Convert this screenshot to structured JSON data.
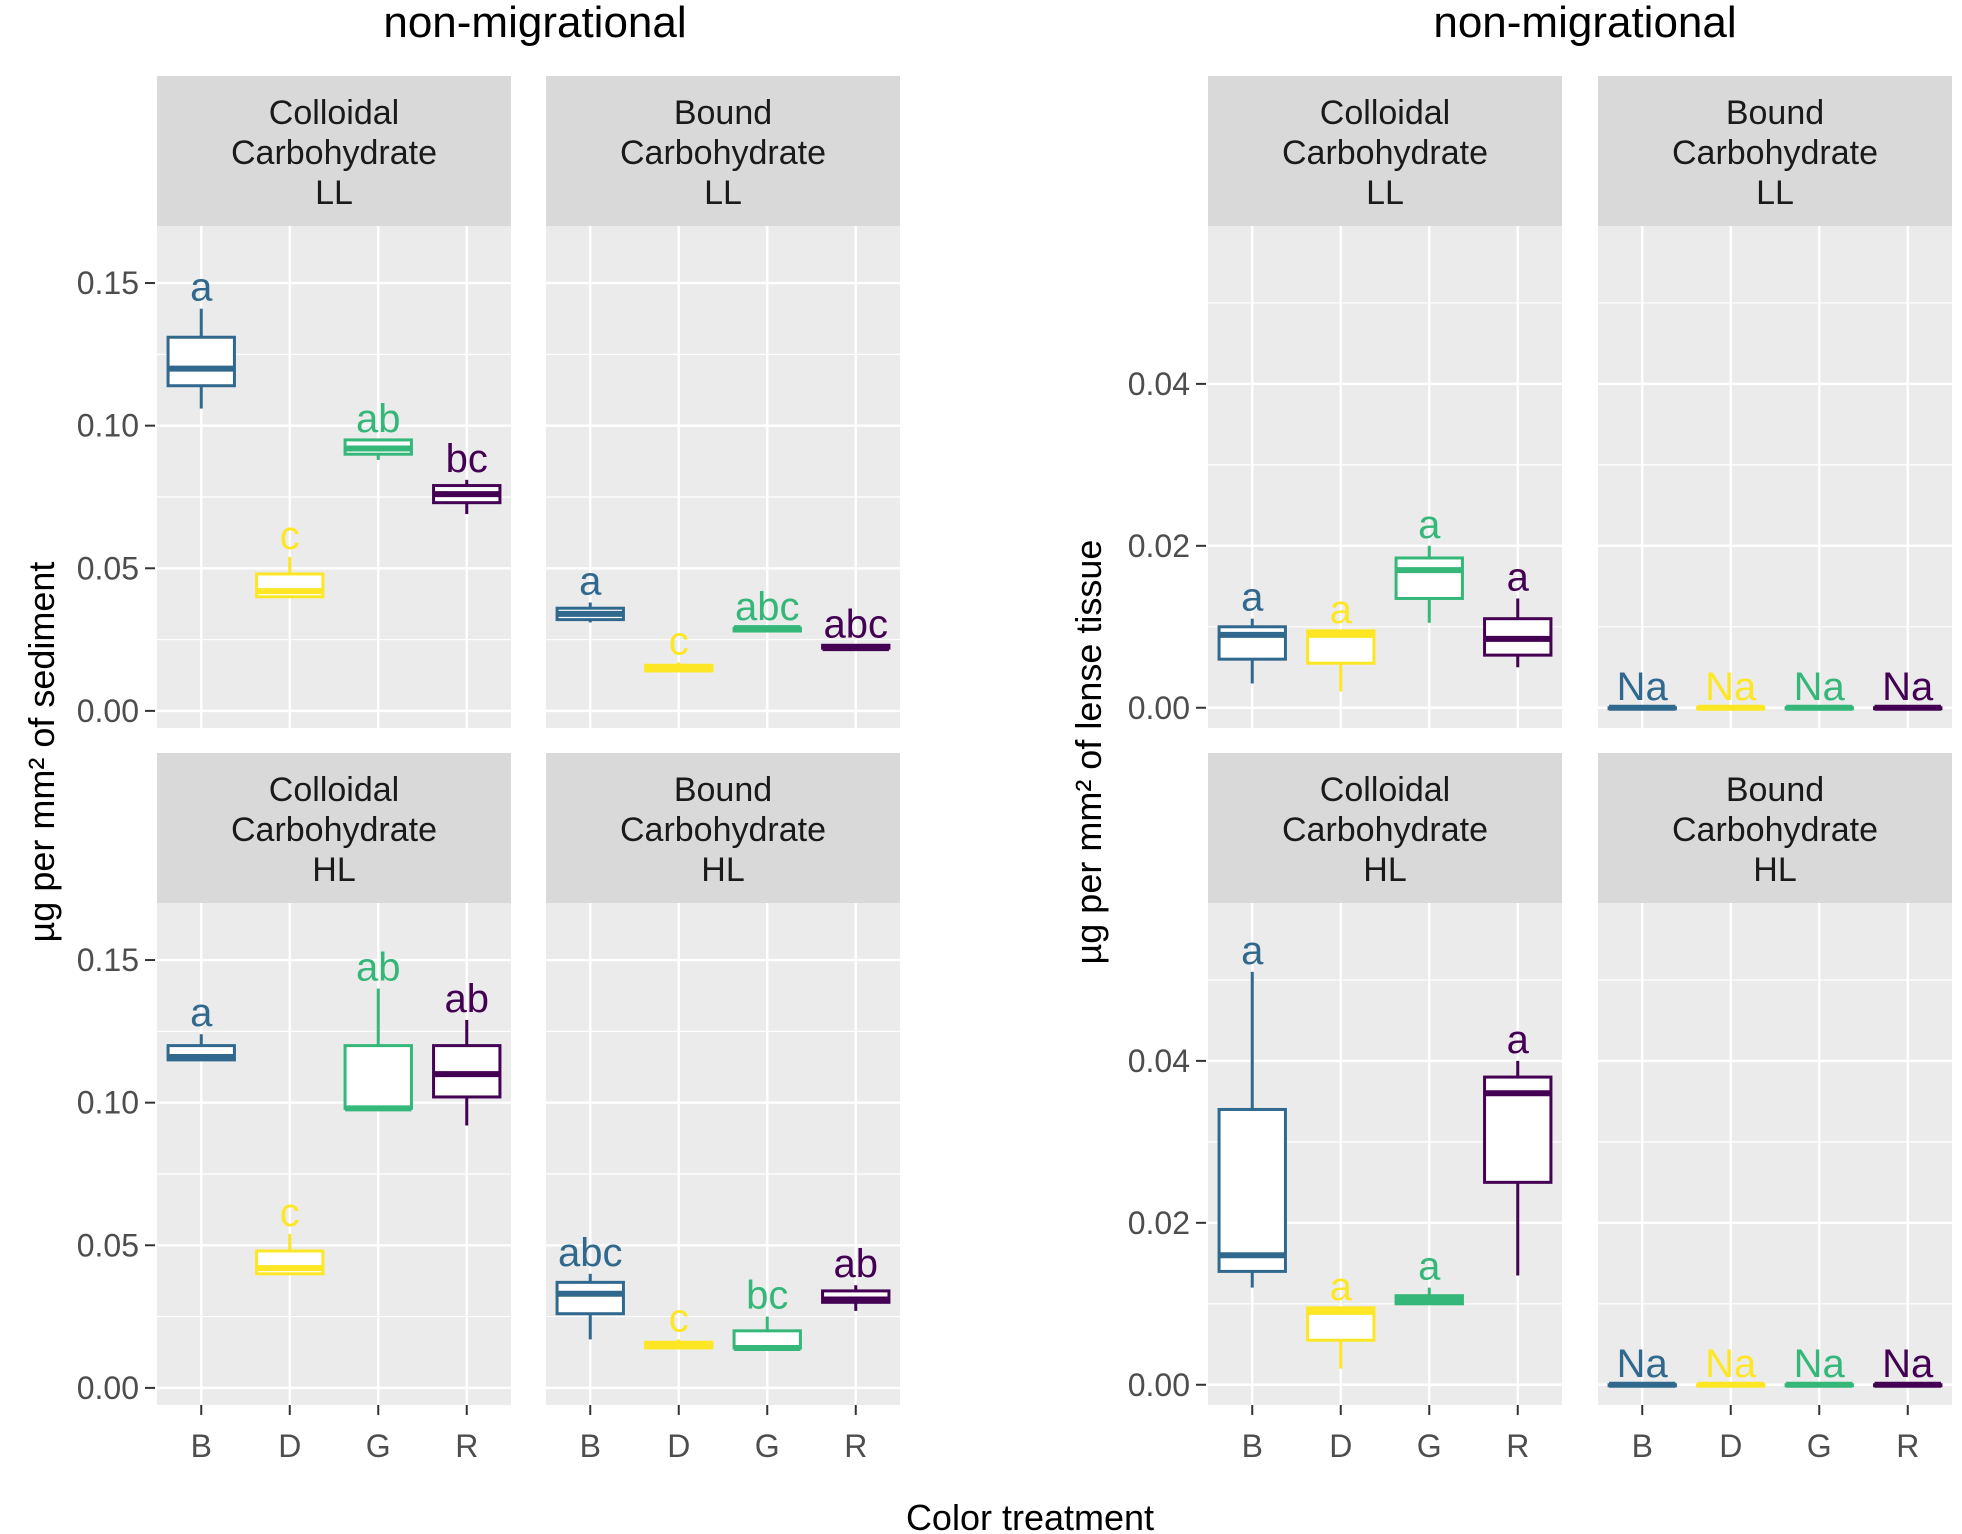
{
  "figure": {
    "xlabel": "Color treatment",
    "tick_text_color": "#4d4d4d",
    "panel_background": "#ebebeb",
    "strip_background": "#d9d9d9",
    "gridline_color": "#ffffff"
  },
  "chart_data": [
    {
      "type": "boxplot",
      "title": "non-migrational",
      "ylabel": "µg per mm² of sediment",
      "xlabel": "Color treatment",
      "ylim": [
        -0.006,
        0.17
      ],
      "yticks": [
        0.0,
        0.05,
        0.1,
        0.15
      ],
      "ytick_labels": [
        "0.00",
        "0.05",
        "0.10",
        "0.15"
      ],
      "categories": [
        "B",
        "D",
        "G",
        "R"
      ],
      "category_colors": {
        "B": "#31688e",
        "D": "#fde725",
        "G": "#35b779",
        "R": "#440154"
      },
      "facets": [
        {
          "strip": [
            "Colloidal",
            "Carbohydrate",
            "LL"
          ],
          "row": 0,
          "col": 0,
          "boxes": [
            {
              "category": "B",
              "min": 0.106,
              "q1": 0.114,
              "median": 0.12,
              "q3": 0.131,
              "max": 0.141,
              "label": "a"
            },
            {
              "category": "D",
              "min": 0.04,
              "q1": 0.04,
              "median": 0.042,
              "q3": 0.048,
              "max": 0.054,
              "label": "c"
            },
            {
              "category": "G",
              "min": 0.088,
              "q1": 0.09,
              "median": 0.092,
              "q3": 0.095,
              "max": 0.095,
              "label": "ab"
            },
            {
              "category": "R",
              "min": 0.069,
              "q1": 0.073,
              "median": 0.076,
              "q3": 0.079,
              "max": 0.081,
              "label": "bc"
            }
          ]
        },
        {
          "strip": [
            "Bound",
            "Carbohydrate",
            "LL"
          ],
          "row": 0,
          "col": 1,
          "boxes": [
            {
              "category": "B",
              "min": 0.031,
              "q1": 0.032,
              "median": 0.034,
              "q3": 0.036,
              "max": 0.038,
              "label": "a"
            },
            {
              "category": "D",
              "min": 0.014,
              "q1": 0.014,
              "median": 0.015,
              "q3": 0.016,
              "max": 0.017,
              "label": "c"
            },
            {
              "category": "G",
              "min": 0.028,
              "q1": 0.028,
              "median": 0.029,
              "q3": 0.029,
              "max": 0.029,
              "label": "abc"
            },
            {
              "category": "R",
              "min": 0.022,
              "q1": 0.022,
              "median": 0.022,
              "q3": 0.023,
              "max": 0.023,
              "label": "abc"
            }
          ]
        },
        {
          "strip": [
            "Colloidal",
            "Carbohydrate",
            "HL"
          ],
          "row": 1,
          "col": 0,
          "boxes": [
            {
              "category": "B",
              "min": 0.115,
              "q1": 0.115,
              "median": 0.116,
              "q3": 0.12,
              "max": 0.124,
              "label": "a"
            },
            {
              "category": "D",
              "min": 0.04,
              "q1": 0.04,
              "median": 0.042,
              "q3": 0.048,
              "max": 0.054,
              "label": "c"
            },
            {
              "category": "G",
              "min": 0.098,
              "q1": 0.098,
              "median": 0.098,
              "q3": 0.12,
              "max": 0.14,
              "label": "ab"
            },
            {
              "category": "R",
              "min": 0.092,
              "q1": 0.102,
              "median": 0.11,
              "q3": 0.12,
              "max": 0.129,
              "label": "ab"
            }
          ]
        },
        {
          "strip": [
            "Bound",
            "Carbohydrate",
            "HL"
          ],
          "row": 1,
          "col": 1,
          "boxes": [
            {
              "category": "B",
              "min": 0.017,
              "q1": 0.026,
              "median": 0.033,
              "q3": 0.037,
              "max": 0.04,
              "label": "abc"
            },
            {
              "category": "D",
              "min": 0.014,
              "q1": 0.014,
              "median": 0.015,
              "q3": 0.016,
              "max": 0.017,
              "label": "c"
            },
            {
              "category": "G",
              "min": 0.014,
              "q1": 0.014,
              "median": 0.014,
              "q3": 0.02,
              "max": 0.025,
              "label": "bc"
            },
            {
              "category": "R",
              "min": 0.027,
              "q1": 0.03,
              "median": 0.031,
              "q3": 0.034,
              "max": 0.036,
              "label": "ab"
            }
          ]
        }
      ]
    },
    {
      "type": "boxplot",
      "title": "non-migrational",
      "ylabel": "µg per mm² of lense tissue",
      "xlabel": "Color treatment",
      "ylim": [
        -0.0025,
        0.0595
      ],
      "yticks": [
        0.0,
        0.02,
        0.04
      ],
      "ytick_labels": [
        "0.00",
        "0.02",
        "0.04"
      ],
      "categories": [
        "B",
        "D",
        "G",
        "R"
      ],
      "category_colors": {
        "B": "#31688e",
        "D": "#fde725",
        "G": "#35b779",
        "R": "#440154"
      },
      "facets": [
        {
          "strip": [
            "Colloidal",
            "Carbohydrate",
            "LL"
          ],
          "row": 0,
          "col": 0,
          "boxes": [
            {
              "category": "B",
              "min": 0.003,
              "q1": 0.006,
              "median": 0.009,
              "q3": 0.01,
              "max": 0.011,
              "label": "a"
            },
            {
              "category": "D",
              "min": 0.002,
              "q1": 0.0055,
              "median": 0.009,
              "q3": 0.0095,
              "max": 0.0095,
              "label": "a"
            },
            {
              "category": "G",
              "min": 0.0105,
              "q1": 0.0135,
              "median": 0.017,
              "q3": 0.0185,
              "max": 0.02,
              "label": "a"
            },
            {
              "category": "R",
              "min": 0.005,
              "q1": 0.0065,
              "median": 0.0085,
              "q3": 0.011,
              "max": 0.0135,
              "label": "a"
            }
          ]
        },
        {
          "strip": [
            "Bound",
            "Carbohydrate",
            "LL"
          ],
          "row": 0,
          "col": 1,
          "boxes": [
            {
              "category": "B",
              "min": 0,
              "q1": 0,
              "median": 0,
              "q3": 0,
              "max": 0,
              "label": "Na"
            },
            {
              "category": "D",
              "min": 0,
              "q1": 0,
              "median": 0,
              "q3": 0,
              "max": 0,
              "label": "Na"
            },
            {
              "category": "G",
              "min": 0,
              "q1": 0,
              "median": 0,
              "q3": 0,
              "max": 0,
              "label": "Na"
            },
            {
              "category": "R",
              "min": 0,
              "q1": 0,
              "median": 0,
              "q3": 0,
              "max": 0,
              "label": "Na"
            }
          ]
        },
        {
          "strip": [
            "Colloidal",
            "Carbohydrate",
            "HL"
          ],
          "row": 1,
          "col": 0,
          "boxes": [
            {
              "category": "B",
              "min": 0.012,
              "q1": 0.014,
              "median": 0.016,
              "q3": 0.034,
              "max": 0.051,
              "label": "a"
            },
            {
              "category": "D",
              "min": 0.002,
              "q1": 0.0055,
              "median": 0.009,
              "q3": 0.0095,
              "max": 0.0095,
              "label": "a"
            },
            {
              "category": "G",
              "min": 0.01,
              "q1": 0.01,
              "median": 0.0105,
              "q3": 0.011,
              "max": 0.012,
              "label": "a"
            },
            {
              "category": "R",
              "min": 0.0135,
              "q1": 0.025,
              "median": 0.036,
              "q3": 0.038,
              "max": 0.04,
              "label": "a"
            }
          ]
        },
        {
          "strip": [
            "Bound",
            "Carbohydrate",
            "HL"
          ],
          "row": 1,
          "col": 1,
          "boxes": [
            {
              "category": "B",
              "min": 0,
              "q1": 0,
              "median": 0,
              "q3": 0,
              "max": 0,
              "label": "Na"
            },
            {
              "category": "D",
              "min": 0,
              "q1": 0,
              "median": 0,
              "q3": 0,
              "max": 0,
              "label": "Na"
            },
            {
              "category": "G",
              "min": 0,
              "q1": 0,
              "median": 0,
              "q3": 0,
              "max": 0,
              "label": "Na"
            },
            {
              "category": "R",
              "min": 0,
              "q1": 0,
              "median": 0,
              "q3": 0,
              "max": 0,
              "label": "Na"
            }
          ]
        }
      ]
    }
  ]
}
